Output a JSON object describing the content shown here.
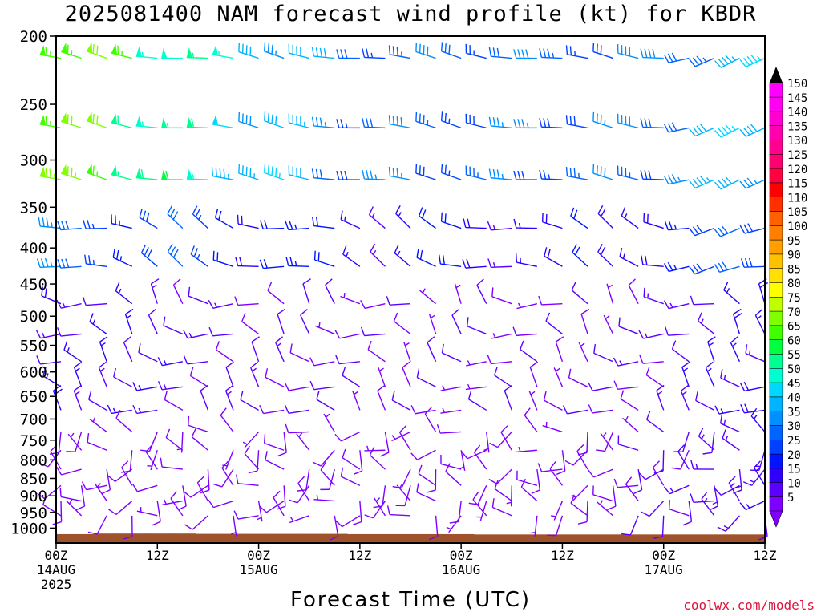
{
  "title": "2025081400 NAM forecast wind profile (kt) for KBDR",
  "credit": "coolwx.com/models",
  "chart_data": {
    "type": "wind-barb time-height",
    "title": "2025081400 NAM forecast wind profile (kt) for KBDR",
    "xlabel": "Forecast Time (UTC)",
    "ylabel": "",
    "y_axis": "pressure (hPa), inverted",
    "ylim": [
      1050,
      200
    ],
    "y_ticks": [
      200,
      250,
      300,
      350,
      400,
      450,
      500,
      550,
      600,
      650,
      700,
      750,
      800,
      850,
      900,
      950,
      1000
    ],
    "x_range_hours": [
      0,
      84
    ],
    "x_ticks": [
      {
        "hour": 0,
        "label": [
          "00Z",
          "14AUG",
          "2025"
        ]
      },
      {
        "hour": 12,
        "label": [
          "12Z"
        ]
      },
      {
        "hour": 24,
        "label": [
          "00Z",
          "15AUG"
        ]
      },
      {
        "hour": 36,
        "label": [
          "12Z"
        ]
      },
      {
        "hour": 48,
        "label": [
          "00Z",
          "16AUG"
        ]
      },
      {
        "hour": 60,
        "label": [
          "12Z"
        ]
      },
      {
        "hour": 72,
        "label": [
          "00Z",
          "17AUG"
        ]
      },
      {
        "hour": 84,
        "label": [
          "12Z"
        ]
      }
    ],
    "levels": [
      215,
      270,
      320,
      375,
      425,
      480,
      530,
      580,
      630,
      680,
      730,
      775,
      825,
      870,
      915,
      960
    ],
    "hours": [
      0,
      3,
      6,
      9,
      12,
      15,
      18,
      21,
      24,
      27,
      30,
      33,
      36,
      39,
      42,
      45,
      48,
      51,
      54,
      57,
      60,
      63,
      66,
      69,
      72,
      75,
      78,
      81,
      84
    ],
    "terrain_surface_hpa": [
      1020,
      1020,
      1018,
      1018,
      1018,
      1018,
      1019,
      1019,
      1019,
      1019,
      1019,
      1019,
      1020,
      1020,
      1020,
      1020,
      1020,
      1021,
      1021,
      1021,
      1021,
      1021,
      1021,
      1021,
      1021,
      1021,
      1021,
      1021,
      1021
    ],
    "wind_description": "Westerly to northwesterly flow throughout; 40-75 kt jet near 200-300 hPa on 14 Aug; light (5-15 kt) variable winds below 700 hPa",
    "colorbar": {
      "label_values": [
        5,
        10,
        15,
        20,
        25,
        30,
        35,
        40,
        45,
        50,
        55,
        60,
        65,
        70,
        75,
        80,
        85,
        90,
        95,
        100,
        105,
        110,
        115,
        120,
        125,
        130,
        135,
        140,
        145,
        150
      ],
      "colors": [
        "#7f00ff",
        "#5a00ff",
        "#3000ff",
        "#0014ff",
        "#0040ff",
        "#0064ff",
        "#0090ff",
        "#00b4ff",
        "#00d8ff",
        "#00ffd0",
        "#00ff90",
        "#00ff40",
        "#40ff00",
        "#80ff00",
        "#c0ff00",
        "#ffff00",
        "#ffe000",
        "#ffc000",
        "#ffa000",
        "#ff8000",
        "#ff6000",
        "#ff3000",
        "#ff0000",
        "#ff0040",
        "#ff0070",
        "#ff0090",
        "#ff00b0",
        "#ff00d0",
        "#ff00f0",
        "#ff00ff"
      ],
      "min_arrow_color": "#7f00ff",
      "max_arrow_color": "#000000"
    }
  }
}
